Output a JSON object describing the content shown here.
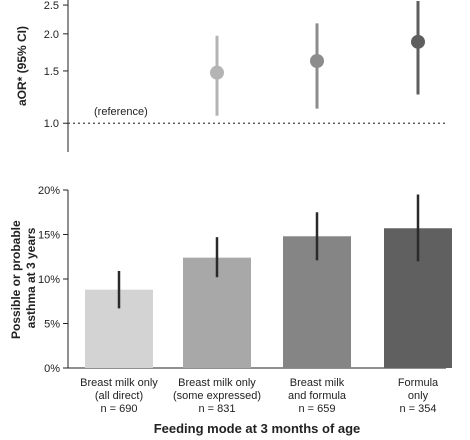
{
  "chart_data": [
    {
      "type": "scatter",
      "ylabel": "aOR* (95% CI)",
      "y_ticks": [
        "1.0",
        "1.5",
        "2.0",
        "2.5"
      ],
      "ylim": [
        0.8,
        2.6
      ],
      "y_scale": "log",
      "reference_line": {
        "value": 1.0,
        "label": "(reference)"
      },
      "categories": [
        "Breast milk only (all direct)",
        "Breast milk only (some expressed)",
        "Breast milk and formula",
        "Formula only"
      ],
      "points": [
        {
          "category": "Breast milk only (some expressed)",
          "estimate": 1.48,
          "ci": [
            1.06,
            1.97
          ],
          "color": "#b4b4b4"
        },
        {
          "category": "Breast milk and formula",
          "estimate": 1.62,
          "ci": [
            1.12,
            2.17
          ],
          "color": "#8c8c8c"
        },
        {
          "category": "Formula only",
          "estimate": 1.88,
          "ci": [
            1.25,
            2.58
          ],
          "color": "#5e5e5e"
        }
      ]
    },
    {
      "type": "bar",
      "ylabel_lines": [
        "Possible or probable",
        "asthma at 3 years"
      ],
      "xlabel": "Feeding mode at 3 months of age",
      "y_ticks": [
        "0%",
        "5%",
        "10%",
        "15%",
        "20%"
      ],
      "ylim": [
        0,
        20
      ],
      "categories": [
        {
          "lines": [
            "Breast milk only",
            "(all direct)",
            "n = 690"
          ]
        },
        {
          "lines": [
            "Breast milk only",
            "(some expressed)",
            "n = 831"
          ]
        },
        {
          "lines": [
            "Breast milk",
            "and formula",
            "n = 659"
          ]
        },
        {
          "lines": [
            "Formula",
            "only",
            "n = 354"
          ]
        }
      ],
      "values": [
        8.8,
        12.4,
        14.8,
        15.7
      ],
      "ci": [
        [
          6.7,
          10.9
        ],
        [
          10.2,
          14.7
        ],
        [
          12.1,
          17.5
        ],
        [
          12.0,
          19.5
        ]
      ],
      "colors": [
        "#d3d3d3",
        "#a8a8a8",
        "#858585",
        "#606060"
      ]
    }
  ]
}
